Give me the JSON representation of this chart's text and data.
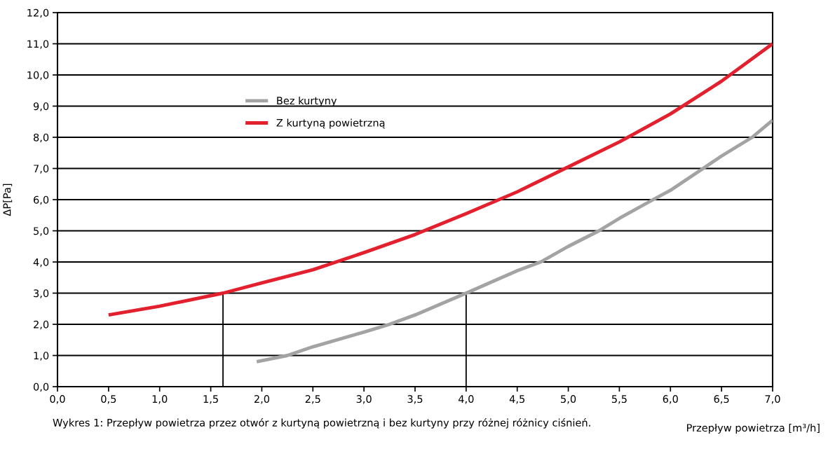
{
  "chart_data": {
    "type": "line",
    "xlabel": "Przepływ powietrza [m³/h]",
    "ylabel": "ΔP[Pa]",
    "annotations": [
      "Wykres 1: Przepływ powietrza przez otwór z kurtyną powietrzną i bez kurtyny przy różnej różnicy ciśnień."
    ],
    "xlim": [
      0,
      7
    ],
    "ylim": [
      0,
      12
    ],
    "xticks": [
      {
        "value": 0,
        "label": "0,0"
      },
      {
        "value": 0.5,
        "label": "0,5"
      },
      {
        "value": 1,
        "label": "1,0"
      },
      {
        "value": 1.5,
        "label": "1,5"
      },
      {
        "value": 2,
        "label": "2,0"
      },
      {
        "value": 2.5,
        "label": "2,5"
      },
      {
        "value": 3,
        "label": "3,0"
      },
      {
        "value": 3.5,
        "label": "3,5"
      },
      {
        "value": 4,
        "label": "4,0"
      },
      {
        "value": 4.5,
        "label": "4,5"
      },
      {
        "value": 5,
        "label": "5,0"
      },
      {
        "value": 5.5,
        "label": "5,5"
      },
      {
        "value": 6,
        "label": "6,0"
      },
      {
        "value": 6.5,
        "label": "6,5"
      },
      {
        "value": 7,
        "label": "7,0"
      }
    ],
    "yticks": [
      {
        "value": 0,
        "label": "0,0"
      },
      {
        "value": 1,
        "label": "1,0"
      },
      {
        "value": 2,
        "label": "2,0"
      },
      {
        "value": 3,
        "label": "3,0"
      },
      {
        "value": 4,
        "label": "4,0"
      },
      {
        "value": 5,
        "label": "5,0"
      },
      {
        "value": 6,
        "label": "6,0"
      },
      {
        "value": 7,
        "label": "7,0"
      },
      {
        "value": 8,
        "label": "8,0"
      },
      {
        "value": 9,
        "label": "9,0"
      },
      {
        "value": 10,
        "label": "10,0"
      },
      {
        "value": 11,
        "label": "11,0"
      },
      {
        "value": 12,
        "label": "12,0"
      }
    ],
    "grid": "y",
    "legend": "top left",
    "marker": "none",
    "line_style": "solid",
    "series": [
      {
        "name": "Bez kurtyny",
        "color": "#a3a3a3",
        "x": [
          1.95,
          2.25,
          2.5,
          3.0,
          3.25,
          3.5,
          4.0,
          4.5,
          4.73,
          5.0,
          5.3,
          5.5,
          5.83,
          6.0,
          6.32,
          6.5,
          6.8,
          7.0
        ],
        "values": [
          0.8,
          1.0,
          1.28,
          1.75,
          2.0,
          2.3,
          3.0,
          3.72,
          4.0,
          4.5,
          5.0,
          5.4,
          6.0,
          6.3,
          7.0,
          7.4,
          8.0,
          8.55
        ]
      },
      {
        "name": "Z kurtyną powietrzną",
        "color": "#e2202e",
        "x": [
          0.5,
          1.0,
          1.62,
          2.0,
          2.5,
          3.0,
          3.5,
          4.0,
          4.5,
          5.0,
          5.5,
          6.0,
          6.5,
          7.0
        ],
        "values": [
          2.3,
          2.58,
          3.0,
          3.33,
          3.75,
          4.3,
          4.88,
          5.55,
          6.25,
          7.05,
          7.85,
          8.75,
          9.8,
          11.0
        ]
      },
      {
        "color": "#000000",
        "x": [
          1.62,
          1.62
        ],
        "values": [
          0,
          3.0
        ]
      },
      {
        "color": "#000000",
        "x": [
          4.0,
          4.0
        ],
        "values": [
          0,
          3.0
        ]
      }
    ]
  }
}
